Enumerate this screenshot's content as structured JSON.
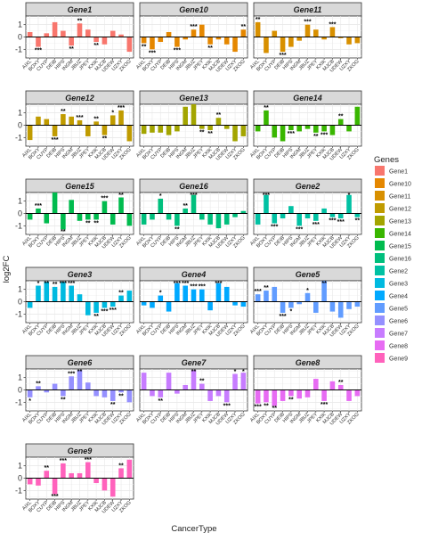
{
  "chart_data": {
    "type": "bar",
    "layout": "facet_wrap",
    "xlabel": "CancerType",
    "ylabel": "log2FC",
    "ylim": [
      -1.7,
      1.7
    ],
    "yticks": [
      1,
      0,
      -1
    ],
    "grid": true,
    "legend_position": "right",
    "legend_title": "Genes",
    "categories": [
      "AIXL",
      "BOXY",
      "CUYP",
      "DEIB",
      "HIPS",
      "INGM",
      "JBUZ",
      "JPEY",
      "KXIK",
      "MJCB",
      "UDEW",
      "UZXY",
      "ZKOG"
    ],
    "series": [
      {
        "name": "Gene1",
        "color": "#F8766D",
        "values": [
          0.4,
          -0.8,
          0.3,
          1.2,
          0.5,
          -0.7,
          1.1,
          0.6,
          -0.4,
          -0.6,
          0.5,
          0.2,
          -1.2
        ],
        "stars": [
          "",
          "***",
          "",
          "",
          "",
          "**",
          "**",
          "",
          "**",
          "",
          "",
          "",
          ""
        ]
      },
      {
        "name": "Gene10",
        "color": "#E58700",
        "values": [
          -0.5,
          -1.0,
          -0.4,
          0.4,
          -0.8,
          -0.2,
          0.6,
          1.0,
          -0.6,
          -0.2,
          -0.6,
          -1.2,
          0.6
        ],
        "stars": [
          "**",
          "***",
          "",
          "",
          "***",
          "",
          "***",
          "",
          "**",
          "",
          "",
          "",
          "**"
        ]
      },
      {
        "name": "Gene11",
        "color": "#D89000",
        "values": [
          1.2,
          -1.3,
          0.5,
          -1.2,
          -0.8,
          -0.3,
          1.0,
          0.6,
          -0.2,
          0.8,
          -0.1,
          -0.6,
          -0.5
        ],
        "stars": [
          "**",
          "",
          "",
          "***",
          "",
          "",
          "***",
          "",
          "",
          "***",
          "",
          "",
          ""
        ]
      },
      {
        "name": "Gene12",
        "color": "#C09B00",
        "values": [
          -1.2,
          0.7,
          0.5,
          -0.9,
          0.9,
          0.7,
          0.4,
          -0.9,
          0.3,
          -0.8,
          0.8,
          1.2,
          -1.3
        ],
        "stars": [
          "",
          "",
          "",
          "***",
          "**",
          "",
          "***",
          "",
          "**",
          "**",
          "*",
          "***",
          ""
        ]
      },
      {
        "name": "Gene13",
        "color": "#A3A500",
        "values": [
          -0.7,
          -0.6,
          -0.6,
          -0.8,
          -0.5,
          1.5,
          1.7,
          -0.3,
          -0.4,
          0.6,
          -0.3,
          -1.3,
          -0.9
        ],
        "stars": [
          "",
          "",
          "",
          "",
          "",
          "",
          "",
          "**",
          "**",
          "**",
          "",
          "",
          ""
        ]
      },
      {
        "name": "Gene14",
        "color": "#39B600",
        "values": [
          -0.5,
          1.2,
          -1.0,
          -1.3,
          -0.4,
          -0.5,
          -0.3,
          -0.6,
          -0.5,
          -0.8,
          0.5,
          -0.5,
          1.5
        ],
        "stars": [
          "",
          "**",
          "",
          "",
          "***",
          "",
          "",
          "**",
          "***",
          "",
          "**",
          "",
          ""
        ]
      },
      {
        "name": "Gene15",
        "color": "#00BB4E",
        "values": [
          -0.5,
          0.4,
          -0.8,
          1.7,
          -1.3,
          1.1,
          -0.6,
          -0.5,
          -0.5,
          1.0,
          -0.9,
          1.3,
          -1.0
        ],
        "stars": [
          "",
          "***",
          "",
          "",
          "**",
          "",
          "",
          "**",
          "**",
          "***",
          "",
          "**",
          ""
        ]
      },
      {
        "name": "Gene16",
        "color": "#00BF7D",
        "values": [
          -0.9,
          -0.5,
          1.2,
          -0.5,
          -1.0,
          0.4,
          1.5,
          -0.5,
          -0.9,
          -1.2,
          -0.9,
          -0.3,
          0.2
        ],
        "stars": [
          "",
          "",
          "*",
          "",
          "**",
          "**",
          "***",
          "",
          "",
          "",
          "",
          "",
          ""
        ]
      },
      {
        "name": "Gene2",
        "color": "#00C1A3",
        "values": [
          -0.9,
          1.5,
          -0.8,
          -0.4,
          0.6,
          -1.0,
          -0.4,
          -0.6,
          0.4,
          -0.3,
          -0.4,
          1.5,
          -0.3
        ],
        "stars": [
          "",
          "***",
          "***",
          "",
          "",
          "***",
          "",
          "***",
          "",
          "***",
          "***",
          "*",
          "**"
        ]
      },
      {
        "name": "Gene3",
        "color": "#00BAE0",
        "values": [
          -0.5,
          1.3,
          1.6,
          1.2,
          1.6,
          1.3,
          0.6,
          -1.1,
          -0.9,
          -0.5,
          -0.4,
          0.5,
          0.9
        ],
        "stars": [
          "",
          "*",
          "**",
          "**",
          "***",
          "***",
          "",
          "",
          "**",
          "***",
          "***",
          "**",
          ""
        ]
      },
      {
        "name": "Gene4",
        "color": "#00A9FF",
        "values": [
          -0.3,
          -0.5,
          0.5,
          -0.8,
          1.5,
          1.3,
          1.0,
          1.0,
          -0.7,
          1.5,
          1.2,
          -0.3,
          -0.4
        ],
        "stars": [
          "",
          "",
          "*",
          "",
          "***",
          "***",
          "***",
          "***",
          "",
          "***",
          "",
          "",
          ""
        ]
      },
      {
        "name": "Gene5",
        "color": "#619CFF",
        "values": [
          0.6,
          0.9,
          1.2,
          -0.9,
          -0.5,
          -0.2,
          0.7,
          -0.9,
          1.7,
          -0.8,
          -1.3,
          -0.6,
          -0.4
        ],
        "stars": [
          "***",
          "**",
          "",
          "***",
          "*",
          "",
          "*",
          "",
          "**",
          "",
          "",
          "",
          ""
        ]
      },
      {
        "name": "Gene6",
        "color": "#9590FF",
        "values": [
          -0.6,
          0.3,
          -0.2,
          0.5,
          -0.5,
          1.1,
          1.6,
          0.6,
          -0.5,
          -0.6,
          -0.9,
          -0.2,
          -1.0
        ],
        "stars": [
          "*",
          "**",
          "",
          "",
          "**",
          "***",
          "**",
          "",
          "",
          "",
          "**",
          "**",
          ""
        ]
      },
      {
        "name": "Gene7",
        "color": "#C77CFF",
        "values": [
          1.4,
          -0.5,
          -0.6,
          1.4,
          -0.3,
          0.4,
          1.6,
          0.5,
          -0.9,
          -0.5,
          -1.0,
          1.3,
          1.4
        ],
        "stars": [
          "",
          "",
          "**",
          "",
          "",
          "",
          "**",
          "**",
          "",
          "",
          "***",
          "*",
          "*"
        ]
      },
      {
        "name": "Gene8",
        "color": "#E76BF3",
        "values": [
          -1.1,
          -1.0,
          -1.3,
          -0.9,
          -0.5,
          -0.7,
          -0.6,
          0.9,
          -0.9,
          0.7,
          0.4,
          -0.9,
          -0.5
        ],
        "stars": [
          "***",
          "**",
          "**",
          "",
          "**",
          "",
          "",
          "",
          "***",
          "",
          "**",
          "",
          ""
        ]
      },
      {
        "name": "Gene9",
        "color": "#FF62BC",
        "values": [
          -0.5,
          -0.6,
          0.6,
          -1.3,
          1.2,
          0.4,
          0.4,
          1.3,
          -0.4,
          -1.0,
          -1.5,
          0.8,
          1.5
        ],
        "stars": [
          "",
          "",
          "**",
          "***",
          "***",
          "",
          "",
          "***",
          "",
          "",
          "",
          "**",
          ""
        ]
      }
    ]
  }
}
